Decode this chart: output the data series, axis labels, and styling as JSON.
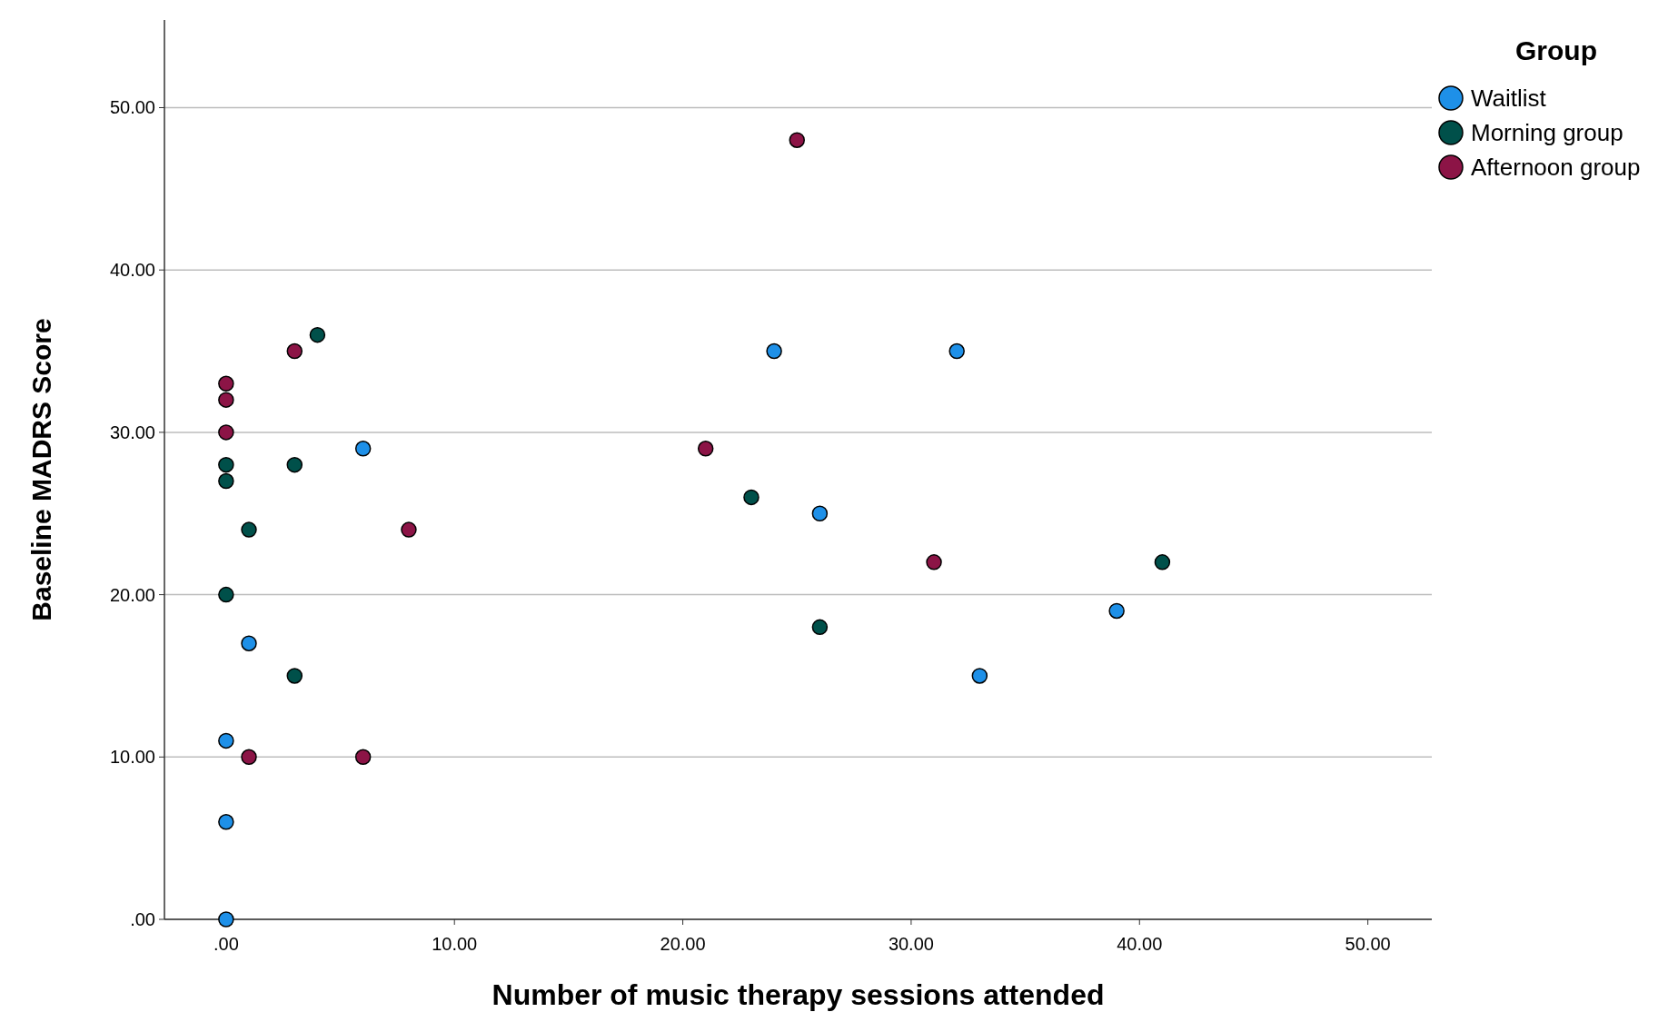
{
  "chart_data": {
    "type": "scatter",
    "xlabel": "Number of music therapy sessions attended",
    "ylabel": "Baseline MADRS Score",
    "legend_title": "Group",
    "legend": "top right",
    "grid": "y",
    "marker": "circle",
    "xlim": [
      -2.7,
      52.8
    ],
    "ylim": [
      0,
      55.4
    ],
    "xticks": [
      {
        "value": 0,
        "label": ".00"
      },
      {
        "value": 10,
        "label": "10.00"
      },
      {
        "value": 20,
        "label": "20.00"
      },
      {
        "value": 30,
        "label": "30.00"
      },
      {
        "value": 40,
        "label": "40.00"
      },
      {
        "value": 50,
        "label": "50.00"
      }
    ],
    "yticks": [
      {
        "value": 0,
        "label": ".00"
      },
      {
        "value": 10,
        "label": "10.00"
      },
      {
        "value": 20,
        "label": "20.00"
      },
      {
        "value": 30,
        "label": "30.00"
      },
      {
        "value": 40,
        "label": "40.00"
      },
      {
        "value": 50,
        "label": "50.00"
      }
    ],
    "series": [
      {
        "name": "Waitlist",
        "color": "#1e90e8",
        "x": [
          0,
          0,
          0,
          1,
          6,
          24,
          32,
          26,
          33,
          39
        ],
        "values": [
          0,
          6,
          11,
          17,
          29,
          35,
          35,
          25,
          15,
          19
        ]
      },
      {
        "name": "Morning group",
        "color": "#00504a",
        "x": [
          0,
          0,
          0,
          1,
          3,
          3,
          4,
          23,
          26,
          41
        ],
        "values": [
          28,
          27,
          20,
          24,
          28,
          15,
          36,
          26,
          18,
          22
        ]
      },
      {
        "name": "Afternoon group",
        "color": "#8c1446",
        "x": [
          0,
          0,
          0,
          1,
          3,
          6,
          8,
          21,
          25,
          31
        ],
        "values": [
          33,
          32,
          30,
          10,
          35,
          10,
          24,
          29,
          48,
          22
        ]
      }
    ]
  }
}
